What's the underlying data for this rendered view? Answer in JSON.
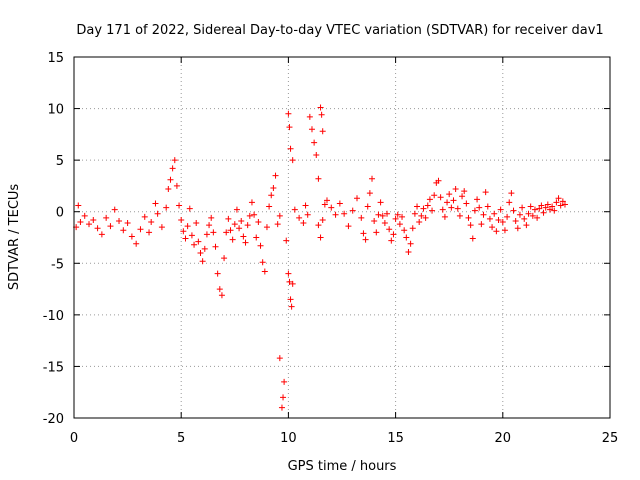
{
  "chart_data": {
    "type": "scatter",
    "title": "Day 171 of 2022, Sidereal Day-to-day VTEC variation (SDTVAR) for receiver dav1",
    "xlabel": "GPS time / hours",
    "ylabel": "SDTVAR / TECUs",
    "xlim": [
      0,
      25
    ],
    "ylim": [
      -20,
      15
    ],
    "xticks": [
      0,
      5,
      10,
      15,
      20,
      25
    ],
    "yticks": [
      -20,
      -15,
      -10,
      -5,
      0,
      5,
      10,
      15
    ],
    "grid": true,
    "marker": "+",
    "color": "#ff0000",
    "series": [
      {
        "name": "dav1",
        "points": [
          [
            0.1,
            -1.5
          ],
          [
            0.2,
            0.6
          ],
          [
            0.3,
            -1.0
          ],
          [
            0.5,
            -0.4
          ],
          [
            0.7,
            -1.2
          ],
          [
            0.9,
            -0.8
          ],
          [
            1.1,
            -1.6
          ],
          [
            1.3,
            -2.2
          ],
          [
            1.5,
            -0.6
          ],
          [
            1.7,
            -1.4
          ],
          [
            1.9,
            0.2
          ],
          [
            2.1,
            -0.9
          ],
          [
            2.3,
            -1.8
          ],
          [
            2.5,
            -1.1
          ],
          [
            2.7,
            -2.4
          ],
          [
            2.9,
            -3.1
          ],
          [
            3.1,
            -1.7
          ],
          [
            3.3,
            -0.5
          ],
          [
            3.5,
            -2.0
          ],
          [
            3.6,
            -1.0
          ],
          [
            3.8,
            0.8
          ],
          [
            3.9,
            -0.2
          ],
          [
            4.1,
            -1.5
          ],
          [
            4.3,
            0.4
          ],
          [
            4.4,
            2.2
          ],
          [
            4.5,
            3.1
          ],
          [
            4.6,
            4.2
          ],
          [
            4.7,
            5.0
          ],
          [
            4.8,
            2.5
          ],
          [
            4.9,
            0.6
          ],
          [
            5.0,
            -0.8
          ],
          [
            5.1,
            -1.9
          ],
          [
            5.2,
            -2.6
          ],
          [
            5.3,
            -1.4
          ],
          [
            5.4,
            0.3
          ],
          [
            5.5,
            -2.3
          ],
          [
            5.6,
            -3.2
          ],
          [
            5.7,
            -1.1
          ],
          [
            5.8,
            -2.9
          ],
          [
            5.9,
            -4.0
          ],
          [
            6.0,
            -4.8
          ],
          [
            6.1,
            -3.6
          ],
          [
            6.2,
            -2.2
          ],
          [
            6.3,
            -1.3
          ],
          [
            6.4,
            -0.6
          ],
          [
            6.5,
            -2.0
          ],
          [
            6.6,
            -3.4
          ],
          [
            6.7,
            -6.0
          ],
          [
            6.8,
            -7.5
          ],
          [
            6.9,
            -8.1
          ],
          [
            7.0,
            -4.5
          ],
          [
            7.1,
            -2.0
          ],
          [
            7.2,
            -0.7
          ],
          [
            7.3,
            -1.8
          ],
          [
            7.4,
            -2.7
          ],
          [
            7.5,
            -1.2
          ],
          [
            7.6,
            0.2
          ],
          [
            7.7,
            -1.6
          ],
          [
            7.8,
            -0.9
          ],
          [
            7.9,
            -2.4
          ],
          [
            8.0,
            -3.0
          ],
          [
            8.1,
            -1.3
          ],
          [
            8.2,
            -0.4
          ],
          [
            8.3,
            0.9
          ],
          [
            8.4,
            -0.3
          ],
          [
            8.5,
            -2.5
          ],
          [
            8.6,
            -1.0
          ],
          [
            8.7,
            -3.3
          ],
          [
            8.8,
            -4.9
          ],
          [
            8.9,
            -5.8
          ],
          [
            9.0,
            -1.5
          ],
          [
            9.1,
            0.5
          ],
          [
            9.2,
            1.6
          ],
          [
            9.3,
            2.3
          ],
          [
            9.4,
            3.5
          ],
          [
            9.5,
            -1.2
          ],
          [
            9.6,
            -0.4
          ],
          [
            9.7,
            -19.0
          ],
          [
            9.75,
            -18.0
          ],
          [
            9.8,
            -16.5
          ],
          [
            9.6,
            -14.2
          ],
          [
            9.9,
            -2.8
          ],
          [
            10.0,
            -6.0
          ],
          [
            10.05,
            -6.8
          ],
          [
            10.1,
            -8.5
          ],
          [
            10.15,
            -9.2
          ],
          [
            10.2,
            -7.0
          ],
          [
            10.0,
            9.5
          ],
          [
            10.05,
            8.2
          ],
          [
            10.1,
            6.1
          ],
          [
            10.2,
            5.0
          ],
          [
            10.3,
            0.2
          ],
          [
            10.5,
            -0.6
          ],
          [
            10.7,
            -1.1
          ],
          [
            10.8,
            0.6
          ],
          [
            10.9,
            -0.3
          ],
          [
            11.0,
            9.2
          ],
          [
            11.1,
            8.0
          ],
          [
            11.2,
            6.7
          ],
          [
            11.3,
            5.5
          ],
          [
            11.4,
            3.2
          ],
          [
            11.5,
            10.1
          ],
          [
            11.55,
            9.4
          ],
          [
            11.6,
            7.8
          ],
          [
            11.4,
            -1.3
          ],
          [
            11.5,
            -2.5
          ],
          [
            11.6,
            -0.8
          ],
          [
            11.7,
            0.7
          ],
          [
            11.8,
            1.1
          ],
          [
            12.0,
            0.4
          ],
          [
            12.2,
            -0.3
          ],
          [
            12.4,
            0.8
          ],
          [
            12.6,
            -0.2
          ],
          [
            12.8,
            -1.4
          ],
          [
            13.0,
            0.1
          ],
          [
            13.2,
            1.3
          ],
          [
            13.4,
            -0.6
          ],
          [
            13.5,
            -2.1
          ],
          [
            13.6,
            -2.7
          ],
          [
            13.7,
            0.5
          ],
          [
            13.8,
            1.8
          ],
          [
            13.9,
            3.2
          ],
          [
            14.0,
            -0.9
          ],
          [
            14.1,
            -2.0
          ],
          [
            14.2,
            -0.3
          ],
          [
            14.3,
            0.9
          ],
          [
            14.4,
            -0.4
          ],
          [
            14.5,
            -1.1
          ],
          [
            14.6,
            -0.2
          ],
          [
            14.7,
            -1.7
          ],
          [
            14.8,
            -2.8
          ],
          [
            14.9,
            -2.2
          ],
          [
            15.0,
            -0.7
          ],
          [
            15.1,
            -0.3
          ],
          [
            15.2,
            -1.2
          ],
          [
            15.3,
            -0.5
          ],
          [
            15.4,
            -1.8
          ],
          [
            15.5,
            -2.5
          ],
          [
            15.6,
            -3.9
          ],
          [
            15.7,
            -3.1
          ],
          [
            15.8,
            -1.6
          ],
          [
            15.9,
            -0.2
          ],
          [
            16.0,
            0.5
          ],
          [
            16.1,
            -1.0
          ],
          [
            16.2,
            -0.4
          ],
          [
            16.3,
            0.3
          ],
          [
            16.4,
            -0.6
          ],
          [
            16.5,
            0.6
          ],
          [
            16.6,
            1.2
          ],
          [
            16.7,
            0.1
          ],
          [
            16.8,
            1.6
          ],
          [
            16.9,
            2.8
          ],
          [
            17.0,
            3.0
          ],
          [
            17.1,
            1.4
          ],
          [
            17.2,
            0.2
          ],
          [
            17.3,
            -0.5
          ],
          [
            17.4,
            0.9
          ],
          [
            17.5,
            1.7
          ],
          [
            17.6,
            0.4
          ],
          [
            17.7,
            1.1
          ],
          [
            17.8,
            2.2
          ],
          [
            17.9,
            0.3
          ],
          [
            18.0,
            -0.4
          ],
          [
            18.1,
            1.5
          ],
          [
            18.2,
            2.0
          ],
          [
            18.3,
            0.8
          ],
          [
            18.4,
            -0.6
          ],
          [
            18.5,
            -1.3
          ],
          [
            18.6,
            -2.6
          ],
          [
            18.7,
            0.1
          ],
          [
            18.8,
            1.2
          ],
          [
            18.9,
            0.4
          ],
          [
            19.0,
            -1.2
          ],
          [
            19.1,
            -0.3
          ],
          [
            19.2,
            1.9
          ],
          [
            19.3,
            0.5
          ],
          [
            19.4,
            -0.7
          ],
          [
            19.5,
            -1.5
          ],
          [
            19.6,
            -0.2
          ],
          [
            19.7,
            -1.9
          ],
          [
            19.8,
            -0.8
          ],
          [
            19.9,
            0.2
          ],
          [
            20.0,
            -1.0
          ],
          [
            20.1,
            -1.8
          ],
          [
            20.2,
            -0.5
          ],
          [
            20.3,
            0.9
          ],
          [
            20.4,
            1.8
          ],
          [
            20.5,
            0.1
          ],
          [
            20.6,
            -0.9
          ],
          [
            20.7,
            -1.6
          ],
          [
            20.8,
            -0.3
          ],
          [
            20.9,
            0.4
          ],
          [
            21.0,
            -0.7
          ],
          [
            21.1,
            -1.3
          ],
          [
            21.2,
            -0.2
          ],
          [
            21.3,
            0.5
          ],
          [
            21.4,
            -0.4
          ],
          [
            21.5,
            0.2
          ],
          [
            21.6,
            -0.6
          ],
          [
            21.7,
            0.3
          ],
          [
            21.8,
            0.6
          ],
          [
            21.9,
            -0.1
          ],
          [
            22.0,
            0.4
          ],
          [
            22.1,
            0.7
          ],
          [
            22.2,
            0.2
          ],
          [
            22.3,
            0.5
          ],
          [
            22.4,
            0.1
          ],
          [
            22.5,
            0.9
          ],
          [
            22.6,
            1.3
          ],
          [
            22.7,
            0.6
          ],
          [
            22.8,
            1.0
          ],
          [
            22.9,
            0.7
          ]
        ]
      }
    ]
  }
}
